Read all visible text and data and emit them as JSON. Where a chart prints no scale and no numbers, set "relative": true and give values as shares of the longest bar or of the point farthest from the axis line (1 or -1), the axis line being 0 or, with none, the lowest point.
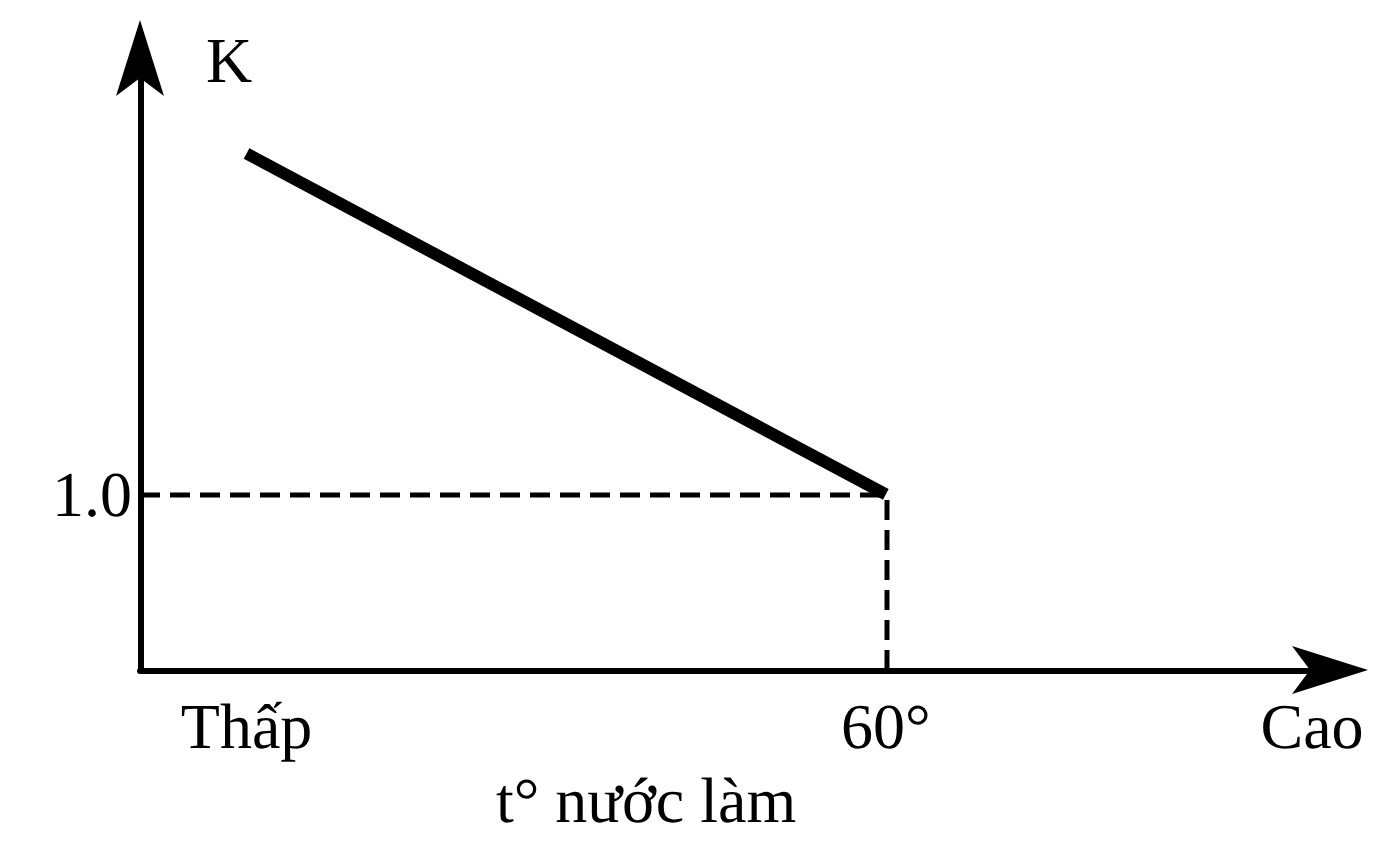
{
  "chart_data": {
    "type": "line",
    "xlabel": "t° nước làm",
    "ylabel": "K",
    "categories": [
      null,
      "Thấp",
      null,
      null,
      null,
      null,
      null,
      "60°",
      null,
      null,
      null,
      "Cao"
    ],
    "series": [
      {
        "color": "#000000",
        "x": [
          "Thấp",
          "60°"
        ],
        "values": [
          1,
          0.34
        ]
      }
    ],
    "relative": true,
    "ref_lines": [
      {
        "axis": "y",
        "value": 0.34,
        "line_style": "dashed",
        "color": "#000000"
      },
      {
        "axis": "x",
        "value": "60°",
        "line_style": "dashed",
        "color": "#000000"
      }
    ],
    "annotations": [
      "1.0"
    ],
    "marker": "none",
    "line_style": "solid",
    "grid": false,
    "tick_labels": "x"
  }
}
